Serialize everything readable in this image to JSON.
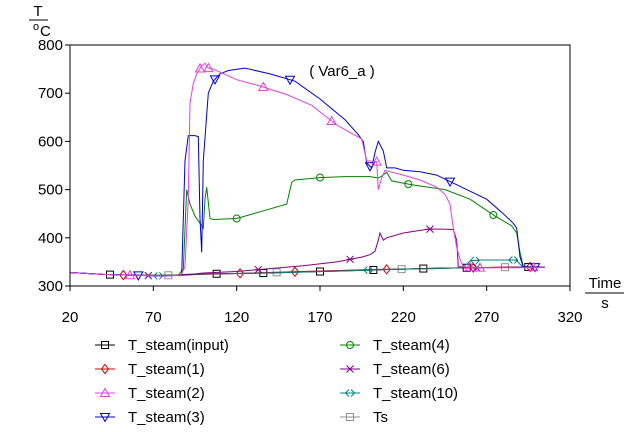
{
  "chart_data": {
    "type": "line",
    "title": "",
    "annotation": "( Var6_a )",
    "ylabel_top": "T",
    "ylabel_bottom_main": "o",
    "ylabel_bottom_sub": "C",
    "xlabel_top": "Time",
    "xlabel_bottom": "s",
    "xlim": [
      20,
      320
    ],
    "ylim": [
      300,
      800
    ],
    "xticks": [
      20,
      70,
      120,
      170,
      220,
      270,
      320
    ],
    "yticks": [
      300,
      400,
      500,
      600,
      700,
      800
    ],
    "legend_position": "bottom",
    "series": [
      {
        "name": "T_steam(input)",
        "color": "#000000",
        "marker": "square",
        "points": [
          [
            20,
            328
          ],
          [
            40,
            324
          ],
          [
            60,
            322
          ],
          [
            75,
            322
          ],
          [
            85,
            323
          ],
          [
            90,
            324
          ],
          [
            100,
            325
          ],
          [
            120,
            326
          ],
          [
            140,
            327
          ],
          [
            160,
            329
          ],
          [
            180,
            331
          ],
          [
            200,
            333
          ],
          [
            220,
            335
          ],
          [
            240,
            337
          ],
          [
            260,
            338
          ],
          [
            280,
            339
          ],
          [
            290,
            339
          ],
          [
            300,
            340
          ],
          [
            305,
            339
          ]
        ],
        "markers": [
          44,
          108,
          136,
          170,
          202,
          232,
          258,
          295
        ]
      },
      {
        "name": "T_steam(1)",
        "color": "#cc0000",
        "marker": "diamond",
        "points": [
          [
            20,
            328
          ],
          [
            40,
            324
          ],
          [
            60,
            322
          ],
          [
            75,
            322
          ],
          [
            85,
            323
          ],
          [
            90,
            323
          ],
          [
            100,
            324
          ],
          [
            120,
            326
          ],
          [
            140,
            328
          ],
          [
            160,
            330
          ],
          [
            180,
            332
          ],
          [
            200,
            334
          ],
          [
            220,
            335
          ],
          [
            240,
            337
          ],
          [
            260,
            338
          ],
          [
            280,
            339
          ],
          [
            290,
            339
          ],
          [
            300,
            340
          ],
          [
            305,
            339
          ]
        ],
        "markers": [
          52,
          122,
          155,
          210,
          262,
          296
        ]
      },
      {
        "name": "T_steam(2)",
        "color": "#e040e0",
        "marker": "triangle-up",
        "points": [
          [
            20,
            328
          ],
          [
            40,
            324
          ],
          [
            60,
            322
          ],
          [
            75,
            321
          ],
          [
            85,
            322
          ],
          [
            87,
            325
          ],
          [
            89,
            340
          ],
          [
            91,
            480
          ],
          [
            92,
            680
          ],
          [
            94,
            720
          ],
          [
            96,
            740
          ],
          [
            99,
            757
          ],
          [
            101,
            762
          ],
          [
            103,
            752
          ],
          [
            106,
            750
          ],
          [
            120,
            728
          ],
          [
            135,
            714
          ],
          [
            150,
            697
          ],
          [
            165,
            675
          ],
          [
            180,
            634
          ],
          [
            195,
            605
          ],
          [
            198,
            560
          ],
          [
            204,
            558
          ],
          [
            205,
            500
          ],
          [
            207,
            524
          ],
          [
            209,
            540
          ],
          [
            211,
            538
          ],
          [
            220,
            530
          ],
          [
            230,
            520
          ],
          [
            240,
            505
          ],
          [
            245,
            490
          ],
          [
            248,
            470
          ],
          [
            250,
            420
          ],
          [
            252,
            380
          ],
          [
            254,
            355
          ],
          [
            256,
            340
          ],
          [
            265,
            338
          ],
          [
            290,
            338
          ],
          [
            300,
            339
          ],
          [
            305,
            339
          ]
        ],
        "markers": [
          56,
          98,
          103,
          136,
          177,
          204,
          260,
          266,
          298
        ]
      },
      {
        "name": "T_steam(3)",
        "color": "#0000cc",
        "marker": "triangle-down",
        "points": [
          [
            20,
            328
          ],
          [
            40,
            324
          ],
          [
            60,
            322
          ],
          [
            75,
            321
          ],
          [
            85,
            322
          ],
          [
            87,
            325
          ],
          [
            89,
            560
          ],
          [
            91,
            612
          ],
          [
            95,
            612
          ],
          [
            97,
            610
          ],
          [
            98,
            440
          ],
          [
            99,
            370
          ],
          [
            100,
            560
          ],
          [
            103,
            700
          ],
          [
            106,
            725
          ],
          [
            110,
            740
          ],
          [
            115,
            747
          ],
          [
            125,
            752
          ],
          [
            140,
            740
          ],
          [
            155,
            725
          ],
          [
            170,
            688
          ],
          [
            185,
            645
          ],
          [
            193,
            614
          ],
          [
            196,
            600
          ],
          [
            198,
            555
          ],
          [
            201,
            545
          ],
          [
            203,
            577
          ],
          [
            205,
            600
          ],
          [
            208,
            580
          ],
          [
            210,
            545
          ],
          [
            215,
            545
          ],
          [
            220,
            540
          ],
          [
            230,
            537
          ],
          [
            240,
            530
          ],
          [
            255,
            505
          ],
          [
            270,
            480
          ],
          [
            280,
            450
          ],
          [
            286,
            430
          ],
          [
            288,
            420
          ],
          [
            290,
            360
          ],
          [
            292,
            340
          ],
          [
            300,
            339
          ],
          [
            305,
            339
          ]
        ],
        "markers": [
          61,
          107,
          152,
          200,
          248,
          299
        ]
      },
      {
        "name": "T_steam(4)",
        "color": "#008000",
        "marker": "circle",
        "points": [
          [
            20,
            328
          ],
          [
            40,
            324
          ],
          [
            60,
            322
          ],
          [
            75,
            322
          ],
          [
            85,
            323
          ],
          [
            88,
            335
          ],
          [
            90,
            500
          ],
          [
            92,
            470
          ],
          [
            95,
            445
          ],
          [
            98,
            430
          ],
          [
            100,
            420
          ],
          [
            101,
            480
          ],
          [
            102,
            505
          ],
          [
            104,
            440
          ],
          [
            106,
            438
          ],
          [
            120,
            440
          ],
          [
            135,
            455
          ],
          [
            150,
            470
          ],
          [
            153,
            515
          ],
          [
            155,
            520
          ],
          [
            170,
            525
          ],
          [
            185,
            527
          ],
          [
            200,
            527
          ],
          [
            205,
            524
          ],
          [
            207,
            528
          ],
          [
            210,
            536
          ],
          [
            213,
            518
          ],
          [
            225,
            510
          ],
          [
            245,
            500
          ],
          [
            260,
            480
          ],
          [
            275,
            445
          ],
          [
            285,
            425
          ],
          [
            288,
            410
          ],
          [
            290,
            370
          ],
          [
            292,
            340
          ],
          [
            300,
            339
          ],
          [
            305,
            339
          ]
        ],
        "markers": [
          120,
          170,
          223,
          274
        ]
      },
      {
        "name": "T_steam(6)",
        "color": "#800080",
        "marker": "cross",
        "points": [
          [
            20,
            328
          ],
          [
            40,
            324
          ],
          [
            60,
            322
          ],
          [
            75,
            321
          ],
          [
            85,
            322
          ],
          [
            90,
            323
          ],
          [
            100,
            327
          ],
          [
            120,
            330
          ],
          [
            140,
            336
          ],
          [
            160,
            342
          ],
          [
            180,
            350
          ],
          [
            195,
            360
          ],
          [
            200,
            365
          ],
          [
            203,
            372
          ],
          [
            205,
            395
          ],
          [
            206,
            410
          ],
          [
            208,
            395
          ],
          [
            210,
            400
          ],
          [
            220,
            410
          ],
          [
            235,
            418
          ],
          [
            245,
            418
          ],
          [
            250,
            417
          ],
          [
            252,
            395
          ],
          [
            253,
            340
          ],
          [
            265,
            338
          ],
          [
            300,
            339
          ],
          [
            305,
            339
          ]
        ],
        "markers": [
          67,
          133,
          188,
          236,
          264
        ]
      },
      {
        "name": "T_steam(10)",
        "color": "#008080",
        "marker": "double-arrow",
        "points": [
          [
            20,
            328
          ],
          [
            40,
            324
          ],
          [
            60,
            322
          ],
          [
            75,
            321
          ],
          [
            85,
            322
          ],
          [
            90,
            323
          ],
          [
            100,
            325
          ],
          [
            120,
            326
          ],
          [
            140,
            327
          ],
          [
            160,
            329
          ],
          [
            180,
            331
          ],
          [
            200,
            333
          ],
          [
            220,
            335
          ],
          [
            240,
            336
          ],
          [
            255,
            338
          ],
          [
            258,
            345
          ],
          [
            260,
            352
          ],
          [
            266,
            354
          ],
          [
            286,
            354
          ],
          [
            288,
            353
          ],
          [
            290,
            345
          ],
          [
            292,
            340
          ],
          [
            300,
            340
          ],
          [
            305,
            339
          ]
        ],
        "markers": [
          73,
          199,
          263,
          286
        ]
      },
      {
        "name": "Ts",
        "color": "#909090",
        "marker": "square",
        "points": [
          [
            20,
            328
          ],
          [
            40,
            324
          ],
          [
            60,
            323
          ],
          [
            75,
            322
          ],
          [
            90,
            323
          ],
          [
            100,
            325
          ],
          [
            120,
            326
          ],
          [
            140,
            328
          ],
          [
            160,
            330
          ],
          [
            180,
            332
          ],
          [
            200,
            334
          ],
          [
            220,
            335
          ],
          [
            240,
            337
          ],
          [
            260,
            338
          ],
          [
            280,
            339
          ],
          [
            300,
            340
          ],
          [
            305,
            339
          ]
        ],
        "markers": [
          79,
          144,
          219,
          281
        ]
      }
    ]
  }
}
